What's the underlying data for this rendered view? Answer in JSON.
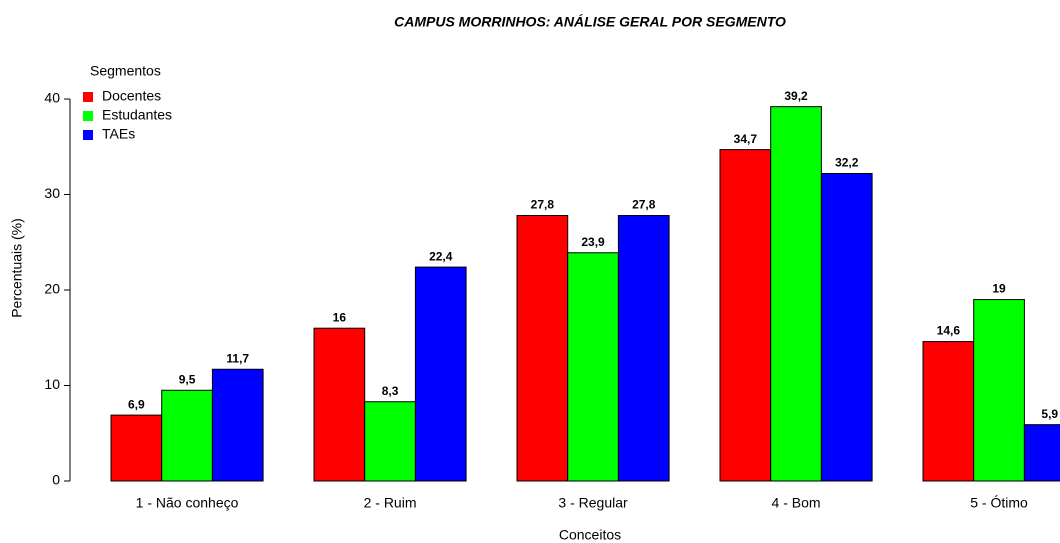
{
  "chart_data": {
    "type": "bar",
    "title": "CAMPUS MORRINHOS: ANÁLISE GERAL POR SEGMENTO",
    "x_label": "Conceitos",
    "y_label": "Percentuais (%)",
    "legend_title": "Segmentos",
    "legend_position": "top-left",
    "categories": [
      "1 - Não conheço",
      "2 - Ruim",
      "3 - Regular",
      "4 - Bom",
      "5 - Ótimo"
    ],
    "series": [
      {
        "name": "Docentes",
        "color": "#ff0000",
        "values": [
          6.9,
          16,
          27.8,
          34.7,
          14.6
        ],
        "value_labels": [
          "6,9",
          "16",
          "27,8",
          "34,7",
          "14,6"
        ]
      },
      {
        "name": "Estudantes",
        "color": "#00ff00",
        "values": [
          9.5,
          8.3,
          23.9,
          39.2,
          19
        ],
        "value_labels": [
          "9,5",
          "8,3",
          "23,9",
          "39,2",
          "19"
        ]
      },
      {
        "name": "TAEs",
        "color": "#0000ff",
        "values": [
          11.7,
          22.4,
          27.8,
          32.2,
          5.9
        ],
        "value_labels": [
          "11,7",
          "22,4",
          "27,8",
          "32,2",
          "5,9"
        ]
      }
    ],
    "ylim": [
      0,
      40
    ],
    "yticks": [
      0,
      10,
      20,
      30,
      40
    ],
    "grid": false
  }
}
